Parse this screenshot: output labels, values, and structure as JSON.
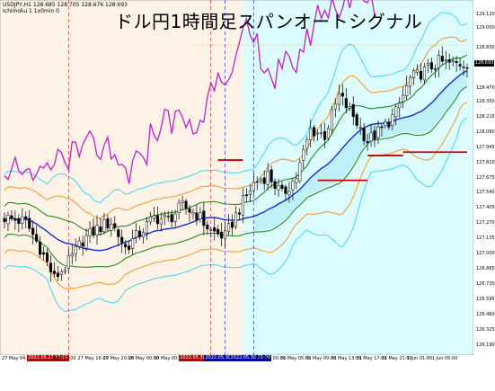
{
  "window": {
    "symbol_line": "USDJPY,H1  128.685 128.705 128.676 128.693",
    "indicator_line": "Ichimoku 1 1x0min 0",
    "title": "ドル円1時間足スパンオートシグナル"
  },
  "colors": {
    "left_bg": "#fdf2e6",
    "right_bg": "#dcfbfd",
    "outer_band": "#4fd8f5",
    "mid_band": "#f0a030",
    "inner_band": "#1f8f1f",
    "center_line": "#1030d8",
    "span_line": "#cc0000",
    "chikou_line": "#c020c8",
    "cloud_fill": "#b8ecf5",
    "vline_red": "#d02020",
    "vline_blue": "#3030d0"
  },
  "price_axis": {
    "ticks": [
      "129.120",
      "129.000",
      "128.830",
      "128.695",
      "128.470",
      "128.350",
      "128.215",
      "128.080",
      "127.945",
      "127.810",
      "127.675",
      "127.540",
      "127.405",
      "127.270",
      "127.135",
      "127.000",
      "126.865",
      "126.730",
      "126.595",
      "126.460",
      "126.325",
      "126.190"
    ],
    "current": "128.693"
  },
  "time_axis": {
    "labels": [
      {
        "text": "27 May 04:00",
        "style": "plain"
      },
      {
        "text": "2022.05.27 11:00",
        "style": "red"
      },
      {
        "text": "May 12:00",
        "style": "plain"
      },
      {
        "text": "27 May 16:00",
        "style": "plain"
      },
      {
        "text": "27 May 20:00",
        "style": "plain"
      },
      {
        "text": "28 May 00:00",
        "style": "plain"
      },
      {
        "text": "30 May 00:00",
        "style": "plain"
      },
      {
        "text": "2022.05.30 10:00",
        "style": "red"
      },
      {
        "text": "2022.05.30 15:00",
        "style": "blue"
      },
      {
        "text": "2022.05.30 21:00",
        "style": "blue"
      },
      {
        "text": "31 May 00:00",
        "style": "plain"
      },
      {
        "text": "31 May 05:00",
        "style": "plain"
      },
      {
        "text": "31 May 09:00",
        "style": "plain"
      },
      {
        "text": "31 May 13:00",
        "style": "plain"
      },
      {
        "text": "31 May 17:00",
        "style": "plain"
      },
      {
        "text": "31 May 21:00",
        "style": "plain"
      },
      {
        "text": "1 Jun 01:00",
        "style": "plain"
      },
      {
        "text": "1 Jun 05:00",
        "style": "plain"
      }
    ]
  },
  "chart_data": {
    "type": "candlestick",
    "symbol": "USDJPY",
    "timeframe": "H1",
    "bar_count": 130,
    "close_path": [
      [
        0,
        127.32
      ],
      [
        6,
        127.28
      ],
      [
        10,
        127.05
      ],
      [
        14,
        126.78
      ],
      [
        18,
        126.92
      ],
      [
        22,
        127.12
      ],
      [
        26,
        127.22
      ],
      [
        30,
        127.28
      ],
      [
        34,
        127.05
      ],
      [
        38,
        127.18
      ],
      [
        42,
        127.32
      ],
      [
        46,
        127.3
      ],
      [
        50,
        127.42
      ],
      [
        54,
        127.35
      ],
      [
        58,
        127.2
      ],
      [
        62,
        127.15
      ],
      [
        66,
        127.4
      ],
      [
        70,
        127.62
      ],
      [
        74,
        127.7
      ],
      [
        78,
        127.52
      ],
      [
        82,
        127.68
      ],
      [
        86,
        128.1
      ],
      [
        90,
        128.05
      ],
      [
        94,
        128.4
      ],
      [
        98,
        128.22
      ],
      [
        102,
        128.0
      ],
      [
        106,
        128.1
      ],
      [
        110,
        128.25
      ],
      [
        114,
        128.55
      ],
      [
        118,
        128.62
      ],
      [
        122,
        128.7
      ],
      [
        126,
        128.68
      ],
      [
        130,
        128.693
      ]
    ],
    "highlights": {
      "left_period": "2022.05.27 11:00 - 2022.05.30 21:00",
      "right_period": "2022.05.30 21:00 - 1 Jun 05:00"
    },
    "span_levels": [
      {
        "from_bar": 60,
        "to_bar": 67,
        "value": 127.83
      },
      {
        "from_bar": 88,
        "to_bar": 102,
        "value": 127.65
      },
      {
        "from_bar": 102,
        "to_bar": 112,
        "value": 127.87
      },
      {
        "from_bar": 112,
        "to_bar": 130,
        "value": 127.9
      }
    ],
    "indicators": {
      "upper_outer_end": 129.1,
      "lower_outer_end": 126.2,
      "center_end": 128.23
    }
  }
}
